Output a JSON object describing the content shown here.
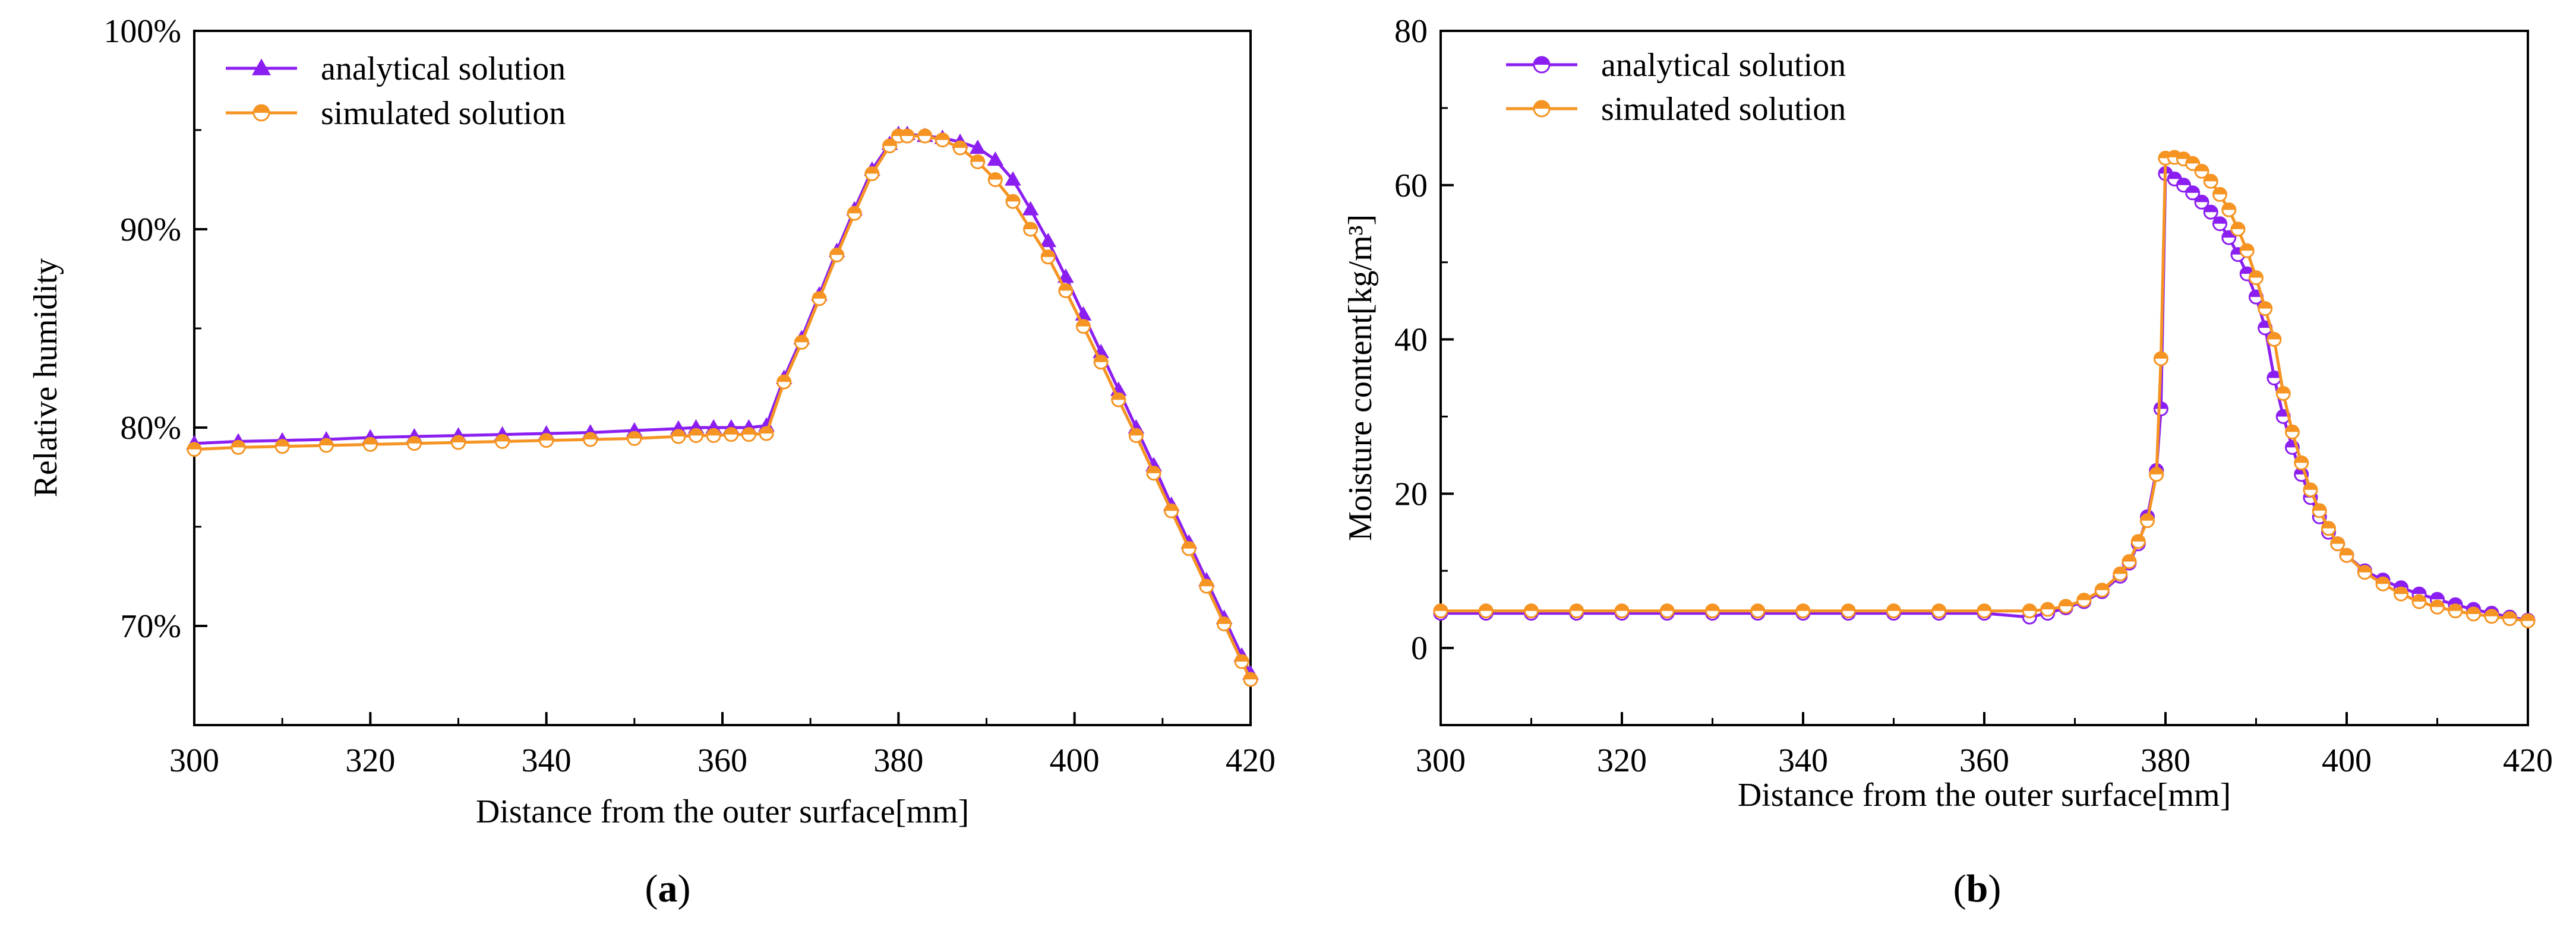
{
  "colors": {
    "analytical": "#8b1ef0",
    "simulated": "#f59422",
    "axis": "#000000"
  },
  "chart_data": [
    {
      "panel": "a",
      "panel_label": {
        "open": "(",
        "letter": "a",
        "close": ")"
      },
      "type": "line",
      "title": "",
      "xlabel": "Distance from the outer surface[mm]",
      "ylabel": "Relative humidity",
      "xlim": [
        300,
        420
      ],
      "ylim": [
        65,
        100
      ],
      "xticks": [
        300,
        320,
        340,
        360,
        380,
        400,
        420
      ],
      "xtick_labels": [
        "300",
        "320",
        "340",
        "360",
        "380",
        "400",
        "420"
      ],
      "yticks": [
        70,
        80,
        90,
        100
      ],
      "ytick_labels": [
        "70%",
        "80%",
        "90%",
        "100%"
      ],
      "legend_position": "top-left",
      "series": [
        {
          "name": "analytical solution",
          "marker": "triangle",
          "points": [
            [
              300,
              79.2
            ],
            [
              305,
              79.3
            ],
            [
              310,
              79.35
            ],
            [
              315,
              79.4
            ],
            [
              320,
              79.5
            ],
            [
              325,
              79.55
            ],
            [
              330,
              79.6
            ],
            [
              335,
              79.65
            ],
            [
              340,
              79.7
            ],
            [
              345,
              79.75
            ],
            [
              350,
              79.85
            ],
            [
              355,
              79.95
            ],
            [
              357,
              80.0
            ],
            [
              359,
              80.0
            ],
            [
              361,
              80.0
            ],
            [
              363,
              80.0
            ],
            [
              365,
              80.1
            ],
            [
              367,
              82.5
            ],
            [
              369,
              84.5
            ],
            [
              371,
              86.7
            ],
            [
              373,
              88.9
            ],
            [
              375,
              91.0
            ],
            [
              377,
              93.0
            ],
            [
              379,
              94.3
            ],
            [
              380,
              94.8
            ],
            [
              381,
              94.8
            ],
            [
              383,
              94.7
            ],
            [
              385,
              94.6
            ],
            [
              387,
              94.4
            ],
            [
              389,
              94.1
            ],
            [
              391,
              93.5
            ],
            [
              393,
              92.5
            ],
            [
              395,
              91.0
            ],
            [
              397,
              89.4
            ],
            [
              399,
              87.6
            ],
            [
              401,
              85.7
            ],
            [
              403,
              83.8
            ],
            [
              405,
              81.9
            ],
            [
              407,
              80.0
            ],
            [
              409,
              78.1
            ],
            [
              411,
              76.1
            ],
            [
              413,
              74.2
            ],
            [
              415,
              72.3
            ],
            [
              417,
              70.4
            ],
            [
              419,
              68.5
            ],
            [
              420,
              67.6
            ]
          ]
        },
        {
          "name": "simulated solution",
          "marker": "circle",
          "points": [
            [
              300,
              78.9
            ],
            [
              305,
              79.0
            ],
            [
              310,
              79.05
            ],
            [
              315,
              79.1
            ],
            [
              320,
              79.15
            ],
            [
              325,
              79.2
            ],
            [
              330,
              79.25
            ],
            [
              335,
              79.3
            ],
            [
              340,
              79.35
            ],
            [
              345,
              79.4
            ],
            [
              350,
              79.45
            ],
            [
              355,
              79.55
            ],
            [
              357,
              79.6
            ],
            [
              359,
              79.6
            ],
            [
              361,
              79.65
            ],
            [
              363,
              79.65
            ],
            [
              365,
              79.7
            ],
            [
              367,
              82.3
            ],
            [
              369,
              84.3
            ],
            [
              371,
              86.5
            ],
            [
              373,
              88.7
            ],
            [
              375,
              90.8
            ],
            [
              377,
              92.8
            ],
            [
              379,
              94.2
            ],
            [
              380,
              94.7
            ],
            [
              381,
              94.7
            ],
            [
              383,
              94.7
            ],
            [
              385,
              94.5
            ],
            [
              387,
              94.1
            ],
            [
              389,
              93.4
            ],
            [
              391,
              92.5
            ],
            [
              393,
              91.4
            ],
            [
              395,
              90.0
            ],
            [
              397,
              88.6
            ],
            [
              399,
              86.9
            ],
            [
              401,
              85.1
            ],
            [
              403,
              83.3
            ],
            [
              405,
              81.4
            ],
            [
              407,
              79.6
            ],
            [
              409,
              77.7
            ],
            [
              411,
              75.8
            ],
            [
              413,
              73.9
            ],
            [
              415,
              72.0
            ],
            [
              417,
              70.1
            ],
            [
              419,
              68.2
            ],
            [
              420,
              67.3
            ]
          ]
        }
      ]
    },
    {
      "panel": "b",
      "panel_label": {
        "open": "(",
        "letter": "b",
        "close": ")"
      },
      "type": "line",
      "title": "",
      "xlabel": "Distance from the outer surface[mm]",
      "ylabel": "Moisture content[kg/m³]",
      "xlim": [
        300,
        420
      ],
      "ylim": [
        -10,
        80
      ],
      "xticks": [
        300,
        320,
        340,
        360,
        380,
        400,
        420
      ],
      "xtick_labels": [
        "300",
        "320",
        "340",
        "360",
        "380",
        "400",
        "420"
      ],
      "yticks": [
        0,
        20,
        40,
        60,
        80
      ],
      "ytick_labels": [
        "0",
        "20",
        "40",
        "60",
        "80"
      ],
      "legend_position": "top-left",
      "series": [
        {
          "name": "analytical solution",
          "marker": "half-circle",
          "points": [
            [
              300,
              4.5
            ],
            [
              305,
              4.5
            ],
            [
              310,
              4.5
            ],
            [
              315,
              4.5
            ],
            [
              320,
              4.5
            ],
            [
              325,
              4.5
            ],
            [
              330,
              4.5
            ],
            [
              335,
              4.5
            ],
            [
              340,
              4.5
            ],
            [
              345,
              4.5
            ],
            [
              350,
              4.5
            ],
            [
              355,
              4.5
            ],
            [
              360,
              4.5
            ],
            [
              365,
              4.0
            ],
            [
              367,
              4.5
            ],
            [
              369,
              5.2
            ],
            [
              371,
              6.0
            ],
            [
              373,
              7.3
            ],
            [
              375,
              9.3
            ],
            [
              376,
              11.0
            ],
            [
              377,
              13.5
            ],
            [
              378,
              17.0
            ],
            [
              379,
              23.0
            ],
            [
              379.5,
              31.0
            ],
            [
              380,
              61.5
            ],
            [
              381,
              60.8
            ],
            [
              382,
              60.0
            ],
            [
              383,
              59.0
            ],
            [
              384,
              57.8
            ],
            [
              385,
              56.5
            ],
            [
              386,
              55.0
            ],
            [
              387,
              53.2
            ],
            [
              388,
              51.0
            ],
            [
              389,
              48.5
            ],
            [
              390,
              45.5
            ],
            [
              391,
              41.5
            ],
            [
              392,
              35.0
            ],
            [
              393,
              30.0
            ],
            [
              394,
              26.0
            ],
            [
              395,
              22.5
            ],
            [
              396,
              19.5
            ],
            [
              397,
              17.0
            ],
            [
              398,
              15.0
            ],
            [
              399,
              13.5
            ],
            [
              400,
              12.0
            ],
            [
              402,
              10.0
            ],
            [
              404,
              8.8
            ],
            [
              406,
              7.8
            ],
            [
              408,
              7.0
            ],
            [
              410,
              6.3
            ],
            [
              412,
              5.6
            ],
            [
              414,
              5.0
            ],
            [
              416,
              4.5
            ],
            [
              418,
              4.0
            ],
            [
              420,
              3.6
            ]
          ]
        },
        {
          "name": "simulated solution",
          "marker": "circle",
          "points": [
            [
              300,
              4.8
            ],
            [
              305,
              4.8
            ],
            [
              310,
              4.8
            ],
            [
              315,
              4.8
            ],
            [
              320,
              4.8
            ],
            [
              325,
              4.8
            ],
            [
              330,
              4.8
            ],
            [
              335,
              4.8
            ],
            [
              340,
              4.8
            ],
            [
              345,
              4.8
            ],
            [
              350,
              4.8
            ],
            [
              355,
              4.8
            ],
            [
              360,
              4.8
            ],
            [
              365,
              4.8
            ],
            [
              367,
              5.0
            ],
            [
              369,
              5.4
            ],
            [
              371,
              6.2
            ],
            [
              373,
              7.5
            ],
            [
              375,
              9.6
            ],
            [
              376,
              11.2
            ],
            [
              377,
              13.8
            ],
            [
              378,
              16.5
            ],
            [
              379,
              22.5
            ],
            [
              379.5,
              37.5
            ],
            [
              380,
              63.5
            ],
            [
              381,
              63.6
            ],
            [
              382,
              63.4
            ],
            [
              383,
              62.8
            ],
            [
              384,
              61.8
            ],
            [
              385,
              60.5
            ],
            [
              386,
              58.8
            ],
            [
              387,
              56.8
            ],
            [
              388,
              54.3
            ],
            [
              389,
              51.5
            ],
            [
              390,
              48.0
            ],
            [
              391,
              44.0
            ],
            [
              392,
              40.0
            ],
            [
              393,
              33.0
            ],
            [
              394,
              28.0
            ],
            [
              395,
              24.0
            ],
            [
              396,
              20.5
            ],
            [
              397,
              17.8
            ],
            [
              398,
              15.5
            ],
            [
              399,
              13.5
            ],
            [
              400,
              12.0
            ],
            [
              402,
              9.8
            ],
            [
              404,
              8.3
            ],
            [
              406,
              7.0
            ],
            [
              408,
              6.0
            ],
            [
              410,
              5.3
            ],
            [
              412,
              4.8
            ],
            [
              414,
              4.4
            ],
            [
              416,
              4.1
            ],
            [
              418,
              3.8
            ],
            [
              420,
              3.5
            ]
          ]
        }
      ]
    }
  ]
}
